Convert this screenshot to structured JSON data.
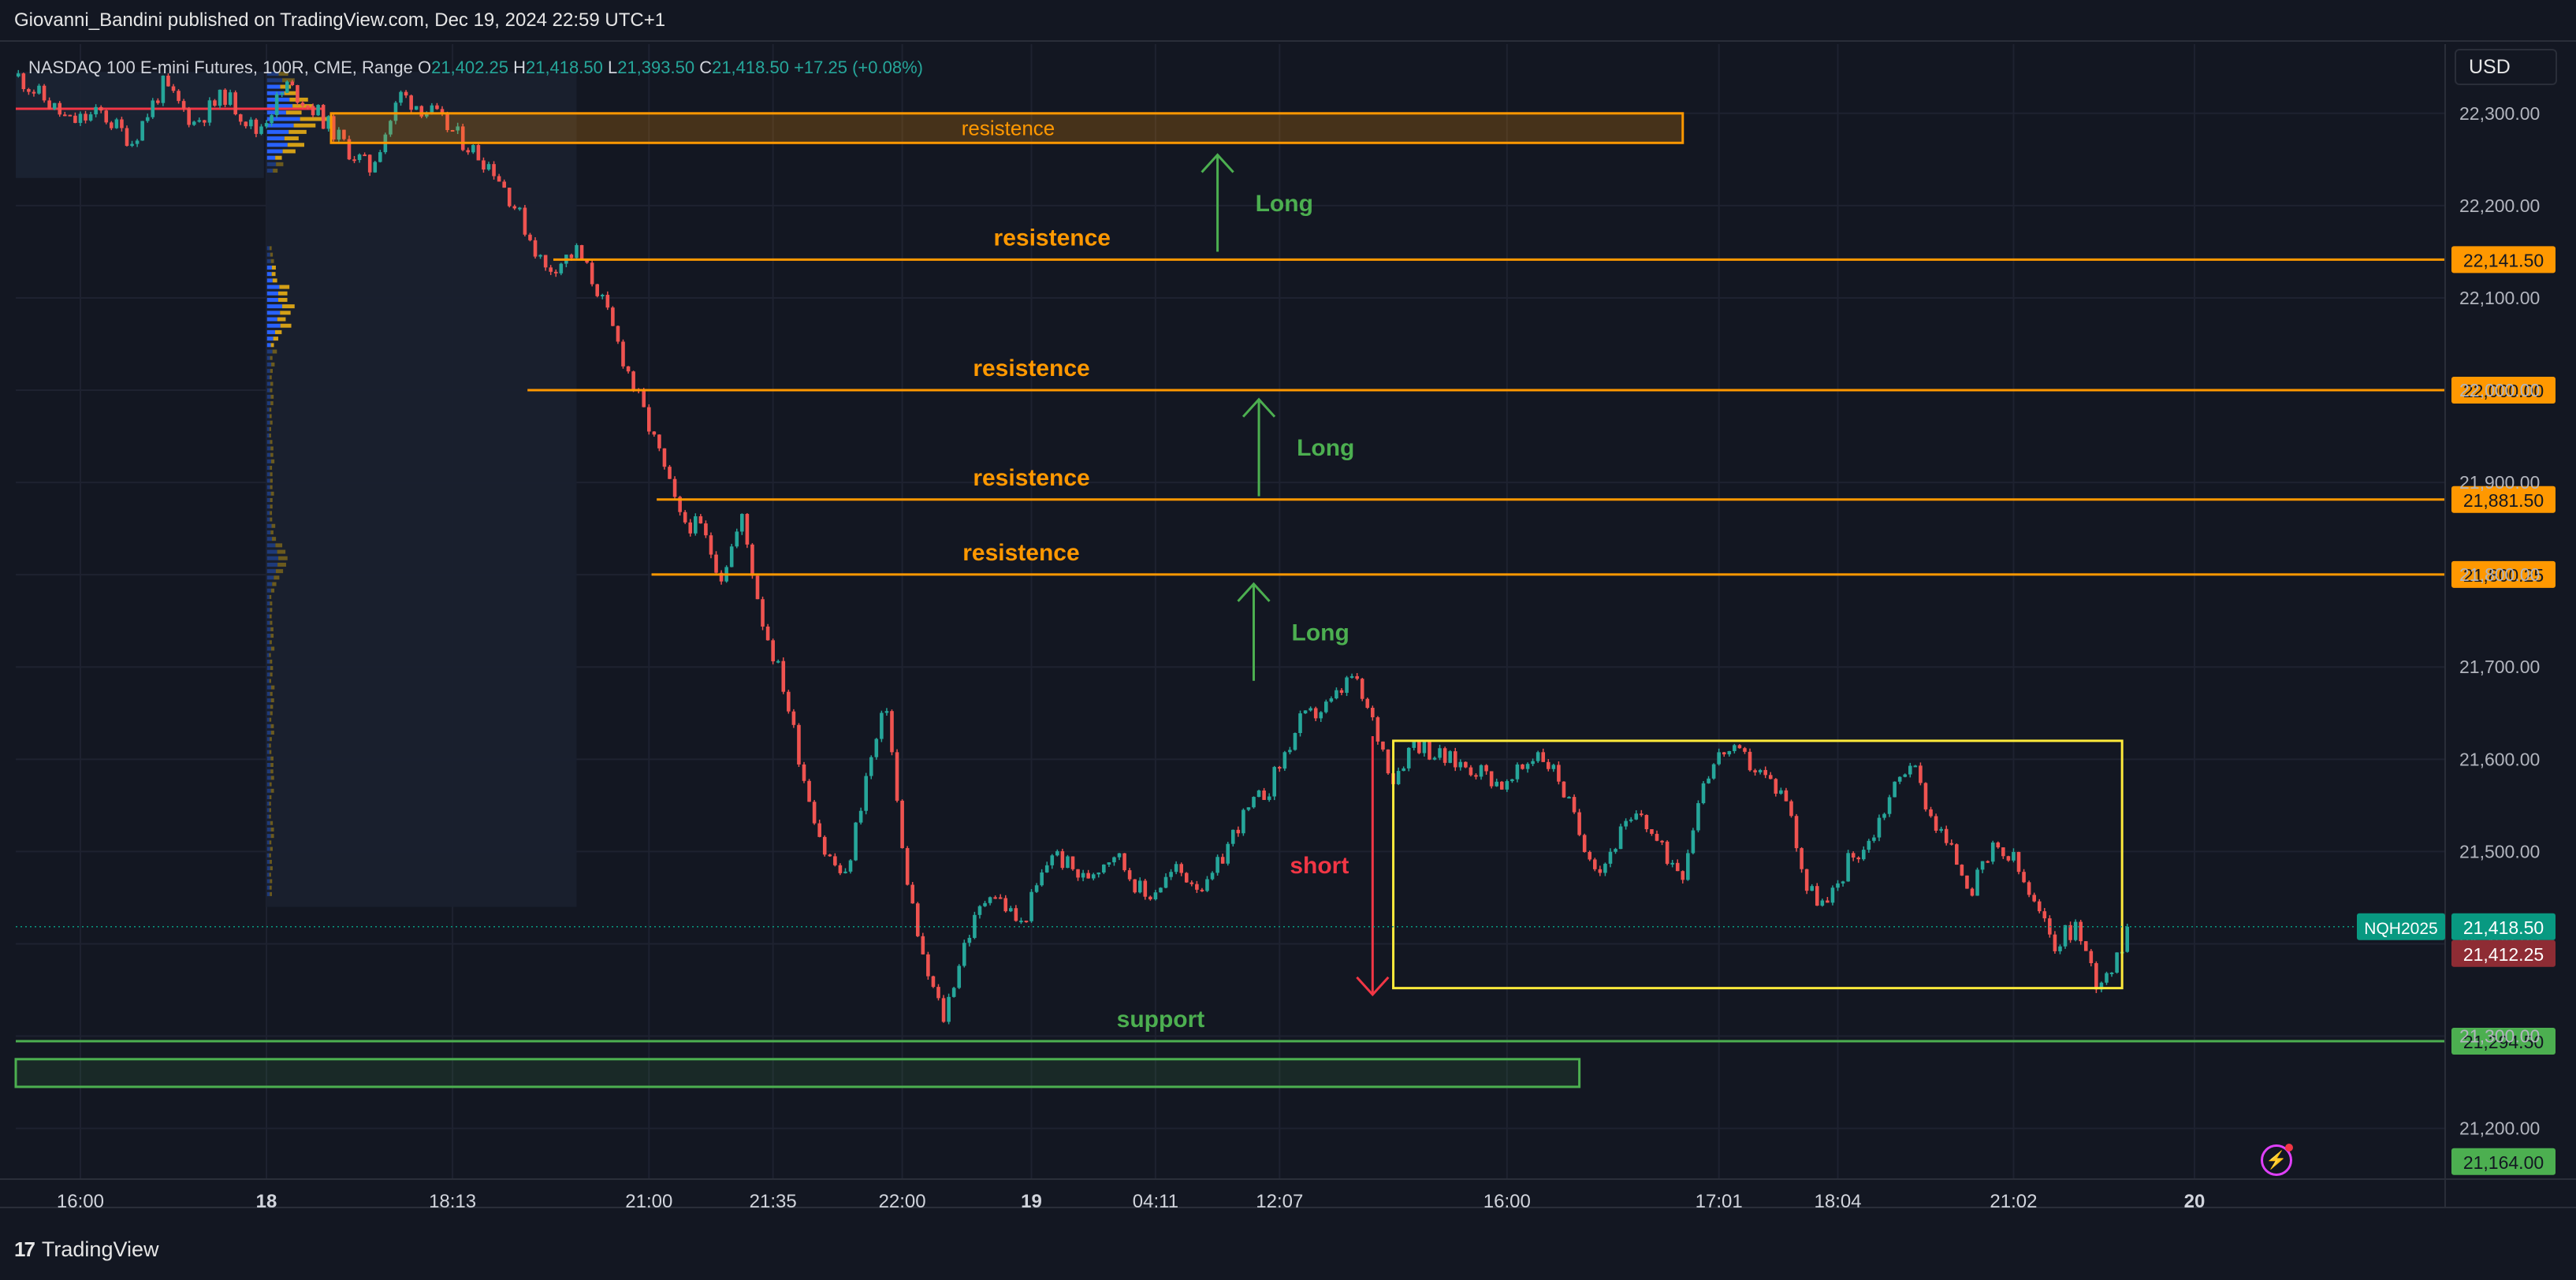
{
  "publisher_line": "Giovanni_Bandini published on TradingView.com, Dec 19, 2024 22:59 UTC+1",
  "brand": {
    "logo": "17",
    "name": "TradingView"
  },
  "currency_button": "USD",
  "icons": {
    "alerts": "lightning-icon"
  },
  "colors": {
    "background": "#131722",
    "up": "#26a69a",
    "down": "#ef5350",
    "resistance": "#ff9800",
    "support": "#4caf50",
    "long_arrow": "#4caf50",
    "short": "#f23645",
    "range_box": "#ffeb3b"
  },
  "legend": {
    "symbol": "NASDAQ 100 E-mini Futures, 100R, CME, Range",
    "O_label": "O",
    "O": "21,402.25",
    "H_label": "H",
    "H": "21,418.50",
    "L_label": "L",
    "L": "21,393.50",
    "C_label": "C",
    "C": "21,418.50",
    "change": "+17.25 (+0.08%)"
  },
  "chart_data": {
    "type": "candlestick",
    "symbol": "NQH2025",
    "ylim": [
      21145,
      22375
    ],
    "y_ticks": [
      21200,
      21300,
      21400,
      21500,
      21600,
      21700,
      21800,
      21900,
      22000,
      22100,
      22200,
      22300
    ],
    "y_tick_labels": [
      "21,200.00",
      "21,300.00",
      "21,400.00",
      "21,500.00",
      "21,600.00",
      "21,700.00",
      "21,800.00",
      "21,900.00",
      "22,000.00",
      "22,100.00",
      "22,200.00",
      "22,300.00"
    ],
    "bar_count": 470,
    "x_tick_labels": [
      {
        "bar": 12,
        "label": "16:00",
        "bold": false
      },
      {
        "bar": 48,
        "label": "18",
        "bold": true
      },
      {
        "bar": 84,
        "label": "18:13",
        "bold": false
      },
      {
        "bar": 122,
        "label": "21:00",
        "bold": false
      },
      {
        "bar": 146,
        "label": "21:35",
        "bold": false
      },
      {
        "bar": 171,
        "label": "22:00",
        "bold": false
      },
      {
        "bar": 196,
        "label": "19",
        "bold": true
      },
      {
        "bar": 220,
        "label": "04:11",
        "bold": false
      },
      {
        "bar": 244,
        "label": "12:07",
        "bold": false
      },
      {
        "bar": 288,
        "label": "16:00",
        "bold": false
      },
      {
        "bar": 329,
        "label": "17:01",
        "bold": false
      },
      {
        "bar": 352,
        "label": "18:04",
        "bold": false
      },
      {
        "bar": 386,
        "label": "21:02",
        "bold": false
      },
      {
        "bar": 421,
        "label": "20",
        "bold": true
      }
    ],
    "price_path": [
      [
        0,
        22340
      ],
      [
        4,
        22320
      ],
      [
        10,
        22290
      ],
      [
        16,
        22300
      ],
      [
        22,
        22270
      ],
      [
        28,
        22330
      ],
      [
        34,
        22290
      ],
      [
        40,
        22320
      ],
      [
        46,
        22280
      ],
      [
        52,
        22330
      ],
      [
        58,
        22300
      ],
      [
        64,
        22260
      ],
      [
        68,
        22240
      ],
      [
        74,
        22320
      ],
      [
        80,
        22300
      ],
      [
        86,
        22270
      ],
      [
        92,
        22240
      ],
      [
        96,
        22200
      ],
      [
        102,
        22130
      ],
      [
        108,
        22150
      ],
      [
        112,
        22110
      ],
      [
        116,
        22050
      ],
      [
        120,
        21990
      ],
      [
        124,
        21930
      ],
      [
        128,
        21860
      ],
      [
        132,
        21850
      ],
      [
        136,
        21800
      ],
      [
        140,
        21860
      ],
      [
        144,
        21750
      ],
      [
        148,
        21680
      ],
      [
        152,
        21580
      ],
      [
        156,
        21500
      ],
      [
        160,
        21470
      ],
      [
        164,
        21580
      ],
      [
        168,
        21660
      ],
      [
        171,
        21500
      ],
      [
        175,
        21380
      ],
      [
        179,
        21320
      ],
      [
        183,
        21400
      ],
      [
        188,
        21460
      ],
      [
        194,
        21420
      ],
      [
        200,
        21500
      ],
      [
        206,
        21470
      ],
      [
        212,
        21500
      ],
      [
        218,
        21450
      ],
      [
        224,
        21480
      ],
      [
        230,
        21460
      ],
      [
        236,
        21530
      ],
      [
        242,
        21570
      ],
      [
        248,
        21640
      ],
      [
        254,
        21660
      ],
      [
        258,
        21690
      ],
      [
        262,
        21640
      ],
      [
        266,
        21580
      ],
      [
        270,
        21620
      ],
      [
        276,
        21600
      ],
      [
        282,
        21590
      ],
      [
        288,
        21570
      ],
      [
        294,
        21610
      ],
      [
        298,
        21580
      ],
      [
        302,
        21520
      ],
      [
        306,
        21480
      ],
      [
        310,
        21520
      ],
      [
        314,
        21540
      ],
      [
        318,
        21500
      ],
      [
        322,
        21480
      ],
      [
        326,
        21580
      ],
      [
        330,
        21610
      ],
      [
        334,
        21600
      ],
      [
        338,
        21580
      ],
      [
        342,
        21560
      ],
      [
        346,
        21460
      ],
      [
        350,
        21440
      ],
      [
        354,
        21490
      ],
      [
        358,
        21510
      ],
      [
        362,
        21560
      ],
      [
        366,
        21600
      ],
      [
        370,
        21540
      ],
      [
        374,
        21500
      ],
      [
        378,
        21460
      ],
      [
        382,
        21500
      ],
      [
        386,
        21490
      ],
      [
        390,
        21440
      ],
      [
        394,
        21400
      ],
      [
        398,
        21420
      ],
      [
        402,
        21360
      ],
      [
        406,
        21380
      ],
      [
        408,
        21418.5
      ]
    ],
    "levels": [
      {
        "name": "resistance-zone",
        "label": "resistence",
        "y_top": 22300,
        "y_bottom": 22268,
        "x_start_bar": 61,
        "x_end_bar": 322
      },
      {
        "name": "resistance-22141",
        "label": "resistence",
        "price": 22141.5,
        "price_label": "22,141.50",
        "x_start_bar": 104,
        "label_bar": 200
      },
      {
        "name": "resistance-22000",
        "label": "resistence",
        "price": 22000,
        "price_label": "22,000.00",
        "x_start_bar": 99,
        "label_bar": 196
      },
      {
        "name": "resistance-21881",
        "label": "resistence",
        "price": 21881.5,
        "price_label": "21,881.50",
        "x_start_bar": 124,
        "label_bar": 196
      },
      {
        "name": "resistance-21800",
        "label": "resistence",
        "price": 21800.25,
        "price_label": "21,800.25",
        "x_start_bar": 123,
        "label_bar": 194
      },
      {
        "name": "support-21294",
        "label": "support",
        "price": 21294.5,
        "price_label": "21,294.50",
        "x_start_bar": 0,
        "label_bar": 221
      },
      {
        "name": "support-zone",
        "y_top": 21275,
        "y_bottom": 21245,
        "x_start_bar": 0,
        "x_end_bar": 302
      }
    ],
    "extra_price_labels": [
      {
        "name": "current",
        "text": "21,418.50",
        "price": 21418.5,
        "color": "#089981",
        "tag": "NQH2025"
      },
      {
        "name": "bid",
        "text": "21,412.25",
        "price": 21412.25,
        "color": "#8e2c34"
      },
      {
        "name": "support-bottom",
        "text": "21,164.00",
        "price": 21164,
        "color": "#4caf50"
      }
    ],
    "arrows": [
      {
        "name": "long-arrow-1",
        "label": "Long",
        "bar": 232,
        "from": 22150,
        "to": 22255
      },
      {
        "name": "long-arrow-2",
        "label": "Long",
        "bar": 240,
        "from": 21885,
        "to": 21990
      },
      {
        "name": "long-arrow-3",
        "label": "Long",
        "bar": 239,
        "from": 21685,
        "to": 21790
      },
      {
        "name": "short-arrow",
        "label": "short",
        "bar": 262,
        "from": 21625,
        "to": 21345
      }
    ],
    "range_box": {
      "x_start_bar": 266,
      "x_end_bar": 407,
      "y_top": 21620,
      "y_bottom": 21352
    }
  }
}
